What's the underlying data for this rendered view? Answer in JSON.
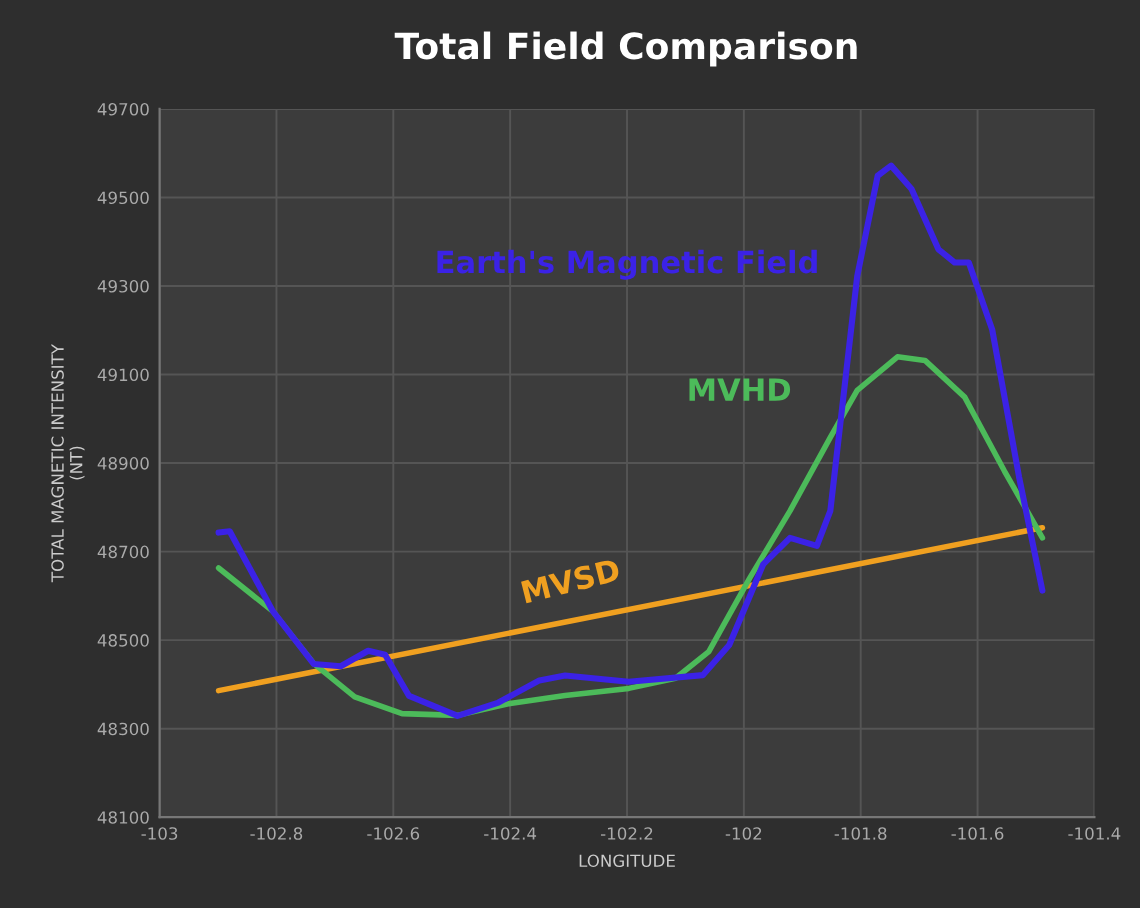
{
  "chart_data": {
    "type": "line",
    "title": "Total Field Comparison",
    "xlabel": "LONGITUDE",
    "ylabel": "TOTAL MAGNETIC INTENSITY\n(NT)",
    "series": [
      {
        "name": "Earth's Magnetic Field",
        "color": "#3b22e6",
        "x": [
          -102.899,
          -102.88,
          -102.806,
          -102.736,
          -102.69,
          -102.643,
          -102.614,
          -102.573,
          -102.49,
          -102.42,
          -102.35,
          -102.306,
          -102.197,
          -102.07,
          -102.025,
          -101.967,
          -101.921,
          -101.875,
          -101.852,
          -101.806,
          -101.771,
          -101.748,
          -101.713,
          -101.667,
          -101.639,
          -101.615,
          -101.575,
          -101.529,
          -101.489
        ],
        "values": [
          48743,
          48746,
          48565,
          48446,
          48441,
          48476,
          48467,
          48374,
          48329,
          48359,
          48409,
          48420,
          48406,
          48421,
          48489,
          48671,
          48731,
          48713,
          48792,
          49322,
          49549,
          49572,
          49519,
          49383,
          49353,
          49353,
          49202,
          48869,
          48612
        ]
      },
      {
        "name": "MVHD",
        "color": "#4cbb5a",
        "x": [
          -102.899,
          -102.806,
          -102.736,
          -102.666,
          -102.585,
          -102.49,
          -102.4,
          -102.306,
          -102.197,
          -102.117,
          -102.06,
          -101.99,
          -101.921,
          -101.852,
          -101.806,
          -101.737,
          -101.69,
          -101.622,
          -101.554,
          -101.489
        ],
        "values": [
          48663,
          48565,
          48447,
          48372,
          48334,
          48330,
          48357,
          48375,
          48391,
          48414,
          48474,
          48640,
          48792,
          48958,
          49064,
          49140,
          49132,
          49049,
          48882,
          48731
        ]
      },
      {
        "name": "MVSD",
        "color": "#f0a020",
        "x": [
          -102.899,
          -101.489
        ],
        "values": [
          48386,
          48754
        ]
      }
    ],
    "xlim": [
      -103,
      -101.4
    ],
    "xticks": [
      -103,
      -102.8,
      -102.6,
      -102.4,
      -102.2,
      -102,
      -101.8,
      -101.6,
      -101.4
    ],
    "ylim": [
      48100,
      49700
    ],
    "yticks": [
      48100,
      48300,
      48500,
      48700,
      48900,
      49100,
      49300,
      49500,
      49700
    ],
    "grid": true,
    "legend": false,
    "marker": "none",
    "line_style": "solid"
  }
}
